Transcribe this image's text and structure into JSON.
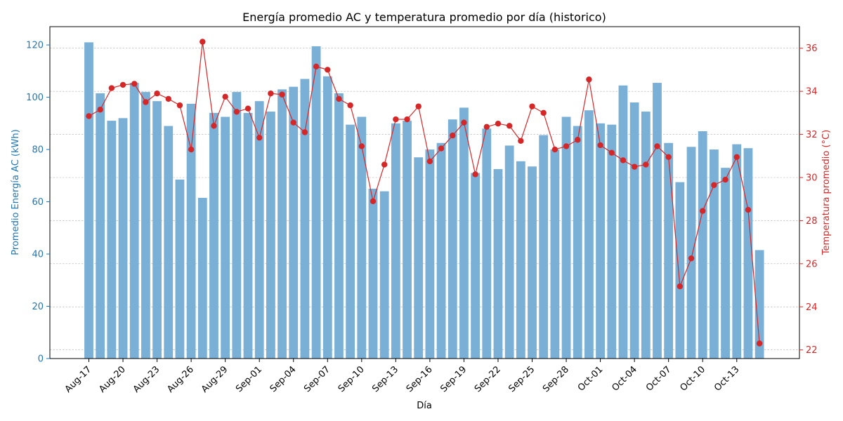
{
  "chart_data": {
    "type": "bar",
    "title": "Energía promedio AC y temperatura promedio por día (historico)",
    "xlabel": "Día",
    "ylabel_left": "Promedio Energía AC (kWh)",
    "ylabel_right": "Temperatura promedio (°C)",
    "ylim_left": [
      0,
      127
    ],
    "ylim_right": [
      21.6,
      37.0
    ],
    "yticks_left": [
      0,
      20,
      40,
      60,
      80,
      100,
      120
    ],
    "yticks_right": [
      22,
      24,
      26,
      28,
      30,
      32,
      34,
      36
    ],
    "grid": "horizontal-dashed",
    "colors": {
      "bar": "#7aafd6",
      "line": "#d62728",
      "left_axis": "#1f77b4",
      "right_axis": "#d62728"
    },
    "x_tick_every": 3,
    "categories": [
      "Aug-17",
      "Aug-18",
      "Aug-19",
      "Aug-20",
      "Aug-21",
      "Aug-22",
      "Aug-23",
      "Aug-24",
      "Aug-25",
      "Aug-26",
      "Aug-27",
      "Aug-28",
      "Aug-29",
      "Aug-30",
      "Aug-31",
      "Sep-01",
      "Sep-02",
      "Sep-03",
      "Sep-04",
      "Sep-05",
      "Sep-06",
      "Sep-07",
      "Sep-08",
      "Sep-09",
      "Sep-10",
      "Sep-11",
      "Sep-12",
      "Sep-13",
      "Sep-14",
      "Sep-15",
      "Sep-16",
      "Sep-17",
      "Sep-18",
      "Sep-19",
      "Sep-20",
      "Sep-21",
      "Sep-22",
      "Sep-23",
      "Sep-24",
      "Sep-25",
      "Sep-26",
      "Sep-27",
      "Sep-28",
      "Sep-29",
      "Sep-30",
      "Oct-01",
      "Oct-02",
      "Oct-03",
      "Oct-04",
      "Oct-05",
      "Oct-06",
      "Oct-07",
      "Oct-08",
      "Oct-09",
      "Oct-10",
      "Oct-11",
      "Oct-12",
      "Oct-13",
      "Oct-14",
      "Oct-15"
    ],
    "series": [
      {
        "type": "bar",
        "values": [
          121,
          101.5,
          91,
          92,
          105.5,
          102,
          98.5,
          89,
          68.5,
          97.5,
          61.5,
          94,
          92.5,
          102,
          94,
          98.5,
          94.5,
          103,
          104,
          107,
          119.5,
          108,
          101.5,
          89.5,
          92.5,
          65,
          64,
          90,
          91,
          77,
          80,
          82.5,
          91.5,
          96,
          71,
          88,
          72.5,
          81.5,
          75.5,
          73.5,
          85.5,
          80,
          92.5,
          89,
          95,
          90,
          89.5,
          104.5,
          98,
          94.5,
          105.5,
          82.5,
          67.5,
          81,
          87,
          80,
          73,
          82,
          80.5,
          41.5
        ]
      },
      {
        "type": "line",
        "values": [
          32.85,
          33.15,
          34.15,
          34.3,
          34.35,
          33.5,
          33.9,
          33.65,
          33.35,
          31.3,
          36.3,
          32.4,
          33.75,
          33.05,
          33.2,
          31.85,
          33.9,
          33.85,
          32.55,
          32.1,
          35.15,
          35.0,
          33.65,
          33.35,
          31.45,
          28.9,
          30.6,
          32.7,
          32.7,
          33.3,
          30.75,
          31.35,
          31.95,
          32.55,
          30.15,
          32.35,
          32.5,
          32.4,
          31.7,
          33.3,
          33.0,
          31.3,
          31.45,
          31.75,
          34.55,
          31.5,
          31.15,
          30.8,
          30.5,
          30.6,
          31.45,
          30.95,
          24.95,
          26.25,
          28.45,
          29.65,
          29.9,
          30.95,
          28.5,
          22.3
        ]
      }
    ]
  }
}
